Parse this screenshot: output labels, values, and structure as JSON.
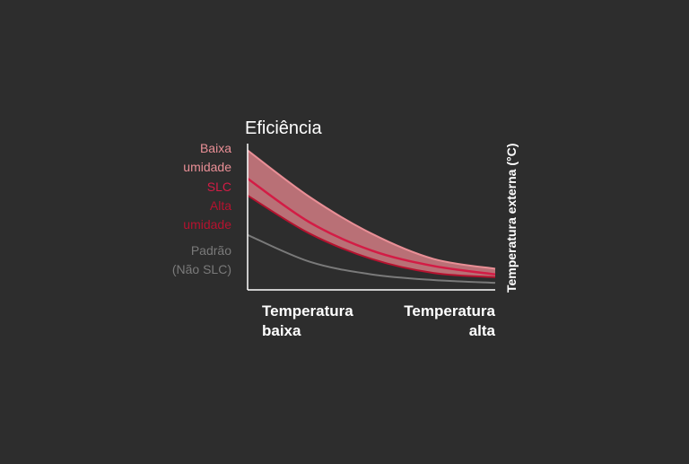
{
  "chart_data": {
    "type": "line",
    "title": "Eficiência",
    "ylabel": "",
    "xlabel": "Temperatura externa (°C)",
    "x_tick_labels": [
      {
        "lines": [
          "Temperatura",
          "baixa"
        ]
      },
      {
        "lines": [
          "Temperatura",
          "alta"
        ]
      }
    ],
    "x": [
      0,
      0.25,
      0.5,
      0.75,
      1
    ],
    "ylim": [
      0,
      1
    ],
    "band": {
      "upper": [
        0.99,
        0.66,
        0.4,
        0.22,
        0.15
      ],
      "lower": [
        0.67,
        0.4,
        0.22,
        0.12,
        0.09
      ],
      "color": "#e8878f"
    },
    "series": [
      {
        "name": "Baixa umidade",
        "label_lines": [
          "Baixa",
          "umidade"
        ],
        "color": "#e98f96",
        "values": [
          0.99,
          0.66,
          0.4,
          0.22,
          0.15
        ]
      },
      {
        "name": "SLC",
        "label_lines": [
          "SLC"
        ],
        "color": "#d31c45",
        "values": [
          0.79,
          0.48,
          0.28,
          0.17,
          0.11
        ]
      },
      {
        "name": "Alta umidade",
        "label_lines": [
          "Alta",
          "umidade"
        ],
        "color": "#b5122f",
        "values": [
          0.67,
          0.4,
          0.22,
          0.12,
          0.09
        ]
      },
      {
        "name": "Padrão (Não SLC)",
        "label_lines": [
          "Padrão",
          "(Não SLC)"
        ],
        "color": "#7a7a7a",
        "values": [
          0.39,
          0.2,
          0.11,
          0.07,
          0.05
        ]
      }
    ],
    "colors": {
      "background": "#2d2d2d",
      "axis": "#ffffff",
      "text": "#ffffff"
    }
  }
}
